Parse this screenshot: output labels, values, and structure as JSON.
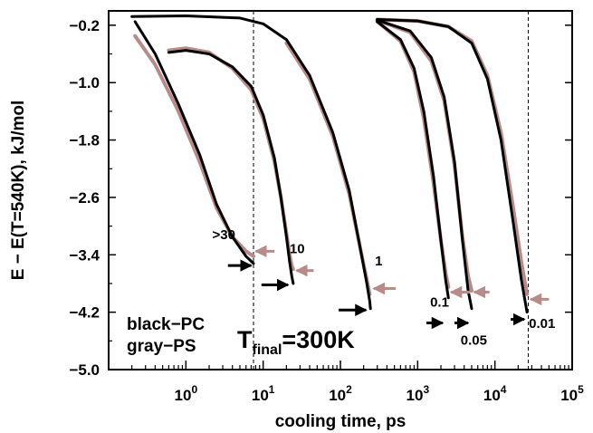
{
  "chart_data": {
    "type": "line",
    "xlabel": "cooling time, ps",
    "ylabel": "E − E(T=540K), kJ/mol",
    "xscale": "log",
    "xlim": [
      0.1,
      100000
    ],
    "ylim": [
      -5.0,
      0.0
    ],
    "x_ticks": [
      {
        "value": 1,
        "base": "10",
        "exp": "0"
      },
      {
        "value": 10,
        "base": "10",
        "exp": "1"
      },
      {
        "value": 100,
        "base": "10",
        "exp": "2"
      },
      {
        "value": 1000,
        "base": "10",
        "exp": "3"
      },
      {
        "value": 10000,
        "base": "10",
        "exp": "4"
      },
      {
        "value": 100000,
        "base": "10",
        "exp": "5"
      }
    ],
    "y_ticks": [
      {
        "value": -0.2,
        "label": "−0.2"
      },
      {
        "value": -1.0,
        "label": "−1.0"
      },
      {
        "value": -1.8,
        "label": "−1.8"
      },
      {
        "value": -2.6,
        "label": "−2.6"
      },
      {
        "value": -3.4,
        "label": "−3.4"
      },
      {
        "value": -4.2,
        "label": "−4.2"
      },
      {
        "value": -5.0,
        "label": "−5.0"
      }
    ],
    "colors": {
      "PC": "#000000",
      "PS": "#b88a88"
    },
    "legend": [
      "black−PC",
      "gray−PS"
    ],
    "annotation": {
      "main": "T",
      "sub": "final",
      "rest": "=300K"
    },
    "reference_lines_x": [
      7.5,
      27000
    ],
    "series": [
      {
        "label": "PC >30",
        "color": "#000000",
        "x": [
          0.22,
          0.4,
          0.8,
          1.5,
          2.5,
          4,
          6,
          7.5
        ],
        "y": [
          -0.15,
          -0.6,
          -1.3,
          -2.0,
          -2.7,
          -3.15,
          -3.42,
          -3.52
        ]
      },
      {
        "label": "PS >30",
        "color": "#b88a88",
        "x": [
          0.22,
          0.4,
          0.8,
          1.5,
          2.5,
          4,
          6,
          7.5
        ],
        "y": [
          -0.35,
          -0.75,
          -1.4,
          -2.1,
          -2.75,
          -3.15,
          -3.35,
          -3.42
        ]
      },
      {
        "label": "PC 10",
        "color": "#000000",
        "x": [
          0.6,
          1.0,
          2,
          4,
          7,
          10,
          14,
          17,
          20,
          22,
          23.5,
          24.5
        ],
        "y": [
          -0.58,
          -0.55,
          -0.6,
          -0.78,
          -1.05,
          -1.45,
          -2.05,
          -2.6,
          -3.15,
          -3.5,
          -3.7,
          -3.8
        ]
      },
      {
        "label": "PS 10",
        "color": "#b88a88",
        "x": [
          0.6,
          1.0,
          2,
          4,
          7,
          10,
          14,
          17,
          20,
          22,
          23.5,
          24.5
        ],
        "y": [
          -0.55,
          -0.52,
          -0.58,
          -0.8,
          -1.1,
          -1.5,
          -2.1,
          -2.6,
          -3.1,
          -3.4,
          -3.55,
          -3.6
        ]
      },
      {
        "label": "PC 1",
        "color": "#000000",
        "x": [
          0.2,
          1,
          5,
          10,
          20,
          40,
          80,
          130,
          180,
          220,
          240,
          245
        ],
        "y": [
          -0.08,
          -0.07,
          -0.1,
          -0.18,
          -0.4,
          -0.9,
          -1.7,
          -2.5,
          -3.3,
          -3.8,
          -4.05,
          -4.15
        ]
      },
      {
        "label": "PS 1",
        "color": "#b88a88",
        "x": [
          20,
          40,
          80,
          130,
          180,
          220,
          240
        ],
        "y": [
          -0.45,
          -0.95,
          -1.75,
          -2.55,
          -3.3,
          -3.75,
          -3.95
        ]
      },
      {
        "label": "PC 0.1",
        "color": "#000000",
        "x": [
          300,
          600,
          900,
          1200,
          1600,
          2000,
          2300,
          2500
        ],
        "y": [
          -0.15,
          -0.4,
          -0.8,
          -1.4,
          -2.3,
          -3.2,
          -3.75,
          -4.0
        ]
      },
      {
        "label": "PS 0.1",
        "color": "#b88a88",
        "x": [
          300,
          600,
          900,
          1200,
          1600,
          2000,
          2300,
          2500
        ],
        "y": [
          -0.15,
          -0.42,
          -0.85,
          -1.5,
          -2.4,
          -3.2,
          -3.65,
          -3.85
        ]
      },
      {
        "label": "PC 0.05",
        "color": "#000000",
        "x": [
          300,
          800,
          1500,
          2200,
          3000,
          3800,
          4500,
          5000
        ],
        "y": [
          -0.13,
          -0.28,
          -0.65,
          -1.2,
          -2.1,
          -3.2,
          -3.9,
          -4.15
        ]
      },
      {
        "label": "PS 0.05",
        "color": "#b88a88",
        "x": [
          300,
          800,
          1500,
          2200,
          3000,
          3800,
          4500,
          5000
        ],
        "y": [
          -0.13,
          -0.3,
          -0.7,
          -1.25,
          -2.15,
          -3.15,
          -3.7,
          -3.9
        ]
      },
      {
        "label": "PC 0.01",
        "color": "#000000",
        "x": [
          300,
          1000,
          2500,
          5000,
          8000,
          12000,
          17000,
          22000,
          26000
        ],
        "y": [
          -0.12,
          -0.14,
          -0.22,
          -0.45,
          -0.95,
          -1.8,
          -2.9,
          -3.75,
          -4.2
        ]
      },
      {
        "label": "PS 0.01",
        "color": "#b88a88",
        "x": [
          300,
          1000,
          2500,
          5000,
          8000,
          12000,
          17000,
          22000,
          26000
        ],
        "y": [
          -0.12,
          -0.14,
          -0.22,
          -0.42,
          -0.9,
          -1.7,
          -2.7,
          -3.5,
          -3.95
        ]
      }
    ],
    "labels": [
      {
        "text": ">30",
        "x": 2.2,
        "y": -3.18
      },
      {
        "text": "10",
        "x": 22,
        "y": -3.38
      },
      {
        "text": "1",
        "x": 280,
        "y": -3.55
      },
      {
        "text": "0.1",
        "x": 1450,
        "y": -4.12
      },
      {
        "text": "0.05",
        "x": 3600,
        "y": -4.65
      },
      {
        "text": "0.01",
        "x": 27500,
        "y": -4.42
      }
    ],
    "arrows_pc": [
      {
        "x0": 3.5,
        "x1": 7.0,
        "y": -3.55
      },
      {
        "x0": 9.5,
        "x1": 21.0,
        "y": -3.82
      },
      {
        "x0": 95,
        "x1": 215,
        "y": -4.17
      },
      {
        "x0": 1300,
        "x1": 2100,
        "y": -4.35
      },
      {
        "x0": 3000,
        "x1": 4500,
        "y": -4.35
      },
      {
        "x0": 16000,
        "x1": 24000,
        "y": -4.3
      }
    ],
    "arrows_ps": [
      {
        "x0": 14,
        "x1": 8.0,
        "y": -3.35
      },
      {
        "x0": 45,
        "x1": 27,
        "y": -3.62
      },
      {
        "x0": 520,
        "x1": 270,
        "y": -3.87
      },
      {
        "x0": 4800,
        "x1": 2700,
        "y": -3.92
      },
      {
        "x0": 8500,
        "x1": 5400,
        "y": -3.92
      },
      {
        "x0": 50000,
        "x1": 29000,
        "y": -4.02
      }
    ]
  }
}
